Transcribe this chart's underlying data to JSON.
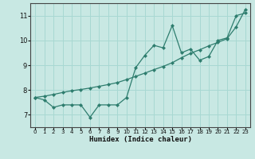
{
  "xlabel": "Humidex (Indice chaleur)",
  "x": [
    0,
    1,
    2,
    3,
    4,
    5,
    6,
    7,
    8,
    9,
    10,
    11,
    12,
    13,
    14,
    15,
    16,
    17,
    18,
    19,
    20,
    21,
    22,
    23
  ],
  "y_line1": [
    7.7,
    7.6,
    7.3,
    7.4,
    7.4,
    7.4,
    6.9,
    7.4,
    7.4,
    7.4,
    7.7,
    8.9,
    9.4,
    9.8,
    9.7,
    10.6,
    9.5,
    9.65,
    9.2,
    9.35,
    10.0,
    10.1,
    11.0,
    11.1
  ],
  "y_line2": [
    7.7,
    7.75,
    7.82,
    7.9,
    7.97,
    8.02,
    8.08,
    8.15,
    8.22,
    8.3,
    8.42,
    8.55,
    8.68,
    8.82,
    8.95,
    9.1,
    9.3,
    9.48,
    9.62,
    9.78,
    9.92,
    10.07,
    10.55,
    11.25
  ],
  "line_color": "#2e7d6e",
  "bg_color": "#c8e8e3",
  "grid_color": "#a8d8d2",
  "ylim": [
    6.5,
    11.5
  ],
  "xlim": [
    -0.5,
    23.5
  ],
  "yticks": [
    7,
    8,
    9,
    10,
    11
  ],
  "xticks": [
    0,
    1,
    2,
    3,
    4,
    5,
    6,
    7,
    8,
    9,
    10,
    11,
    12,
    13,
    14,
    15,
    16,
    17,
    18,
    19,
    20,
    21,
    22,
    23
  ]
}
